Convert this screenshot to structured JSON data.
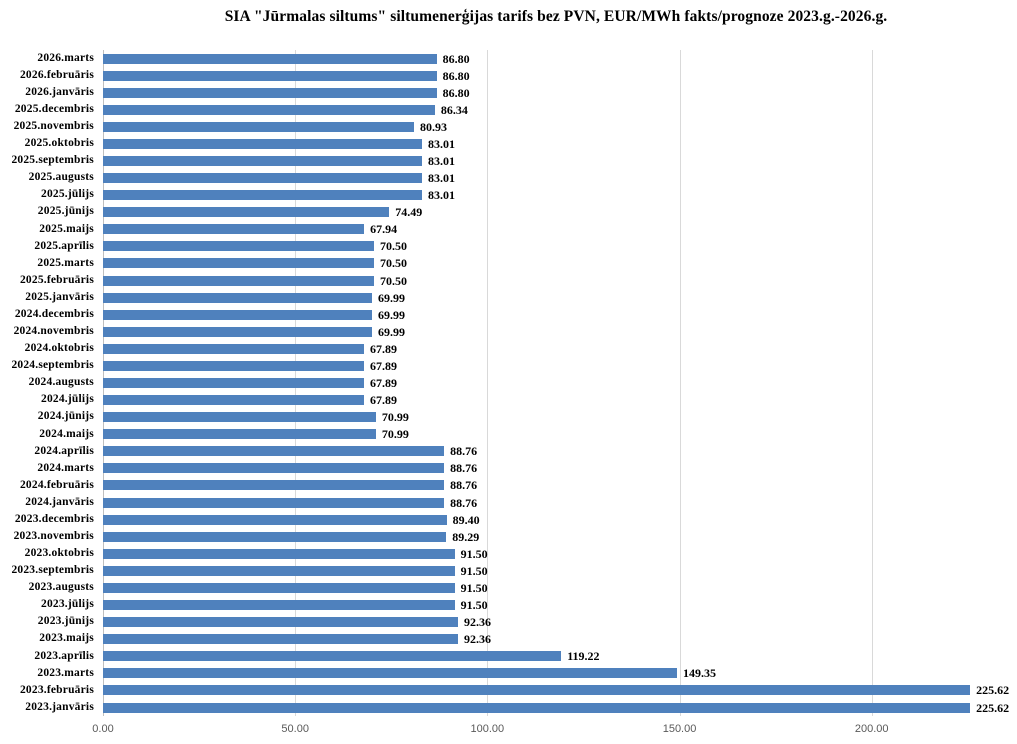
{
  "title": "SIA \"Jūrmalas siltums\" siltumenerģijas tarifs bez PVN, EUR/MWh fakts/prognoze 2023.g.-2026.g.",
  "chart_data": {
    "type": "bar",
    "orientation": "horizontal",
    "title": "SIA \"Jūrmalas siltums\" siltumenerģijas tarifs bez PVN, EUR/MWh fakts/prognoze 2023.g.-2026.g.",
    "categories": [
      "2026.marts",
      "2026.februāris",
      "2026.janvāris",
      "2025.decembris",
      "2025.novembris",
      "2025.oktobris",
      "2025.septembris",
      "2025.augusts",
      "2025.jūlijs",
      "2025.jūnijs",
      "2025.maijs",
      "2025.aprīlis",
      "2025.marts",
      "2025.februāris",
      "2025.janvāris",
      "2024.decembris",
      "2024.novembris",
      "2024.oktobris",
      "2024.septembris",
      "2024.augusts",
      "2024.jūlijs",
      "2024.jūnijs",
      "2024.maijs",
      "2024.aprīlis",
      "2024.marts",
      "2024.februāris",
      "2024.janvāris",
      "2023.decembris",
      "2023.novembris",
      "2023.oktobris",
      "2023.septembris",
      "2023.augusts",
      "2023.jūlijs",
      "2023.jūnijs",
      "2023.maijs",
      "2023.aprīlis",
      "2023.marts",
      "2023.februāris",
      "2023.janvāris"
    ],
    "values": [
      86.8,
      86.8,
      86.8,
      86.34,
      80.93,
      83.01,
      83.01,
      83.01,
      83.01,
      74.49,
      67.94,
      70.5,
      70.5,
      70.5,
      69.99,
      69.99,
      69.99,
      67.89,
      67.89,
      67.89,
      67.89,
      70.99,
      70.99,
      88.76,
      88.76,
      88.76,
      88.76,
      89.4,
      89.29,
      91.5,
      91.5,
      91.5,
      91.5,
      92.36,
      92.36,
      119.22,
      149.35,
      225.62,
      225.62
    ],
    "value_labels": [
      "86.80",
      "86.80",
      "86.80",
      "86.34",
      "80.93",
      "83.01",
      "83.01",
      "83.01",
      "83.01",
      "74.49",
      "67.94",
      "70.50",
      "70.50",
      "70.50",
      "69.99",
      "69.99",
      "69.99",
      "67.89",
      "67.89",
      "67.89",
      "67.89",
      "70.99",
      "70.99",
      "88.76",
      "88.76",
      "88.76",
      "88.76",
      "89.40",
      "89.29",
      "91.50",
      "91.50",
      "91.50",
      "91.50",
      "92.36",
      "92.36",
      "119.22",
      "149.35",
      "225.62",
      "225.62"
    ],
    "xlabel": "",
    "ylabel": "",
    "xlim": [
      0,
      236.5
    ],
    "x_ticks": [
      0,
      50,
      100,
      150,
      200
    ],
    "x_tick_labels": [
      "0.00",
      "50.00",
      "100.00",
      "150.00",
      "200.00"
    ],
    "grid": "vertical",
    "legend": "none",
    "colors": {
      "bar": "#4f81bd",
      "gridline": "#d9d9d9",
      "axis_line": "#bfbfbf",
      "axis_text": "#595959",
      "text": "#000000"
    }
  }
}
